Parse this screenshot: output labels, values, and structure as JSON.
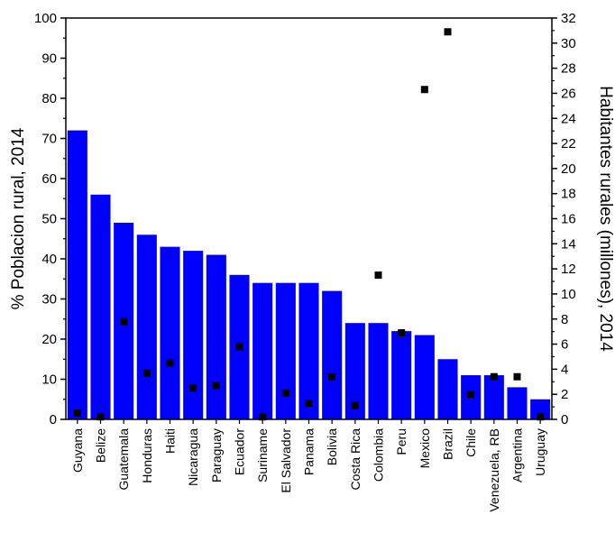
{
  "chart_data": {
    "type": "bar",
    "categories": [
      "Guyana",
      "Belize",
      "Guatemala",
      "Honduras",
      "Haiti",
      "Nicaragua",
      "Paraguay",
      "Ecuador",
      "Suriname",
      "El Salvador",
      "Panama",
      "Bolivia",
      "Costa Rica",
      "Colombia",
      "Peru",
      "Mexico",
      "Brazil",
      "Chile",
      "Venezuela, RB",
      "Argentina",
      "Uruguay"
    ],
    "series": [
      {
        "axis": "left",
        "mark": "bar",
        "color": "#0000ff",
        "values": [
          72,
          56,
          49,
          46,
          43,
          42,
          41,
          36,
          34,
          34,
          34,
          32,
          24,
          24,
          22,
          21,
          15,
          11,
          11,
          8,
          5
        ]
      },
      {
        "axis": "right",
        "mark": "square",
        "color": "#000000",
        "values": [
          0.5,
          0.2,
          7.8,
          3.7,
          4.5,
          2.5,
          2.7,
          5.8,
          0.2,
          2.1,
          1.3,
          3.4,
          1.1,
          11.5,
          6.9,
          26.3,
          30.9,
          2.0,
          3.4,
          3.4,
          0.2
        ]
      }
    ],
    "ylabel": "% Poblacion rural, 2014",
    "ylim": [
      0,
      100
    ],
    "yticks": [
      0,
      10,
      20,
      30,
      40,
      50,
      60,
      70,
      80,
      90,
      100
    ],
    "y2label": "Habitantes rurales (millones), 2014",
    "y2lim": [
      0,
      32
    ],
    "y2ticks": [
      0,
      2,
      4,
      6,
      8,
      10,
      12,
      14,
      16,
      18,
      20,
      22,
      24,
      26,
      28,
      30,
      32
    ],
    "grid": false,
    "legend": false
  }
}
